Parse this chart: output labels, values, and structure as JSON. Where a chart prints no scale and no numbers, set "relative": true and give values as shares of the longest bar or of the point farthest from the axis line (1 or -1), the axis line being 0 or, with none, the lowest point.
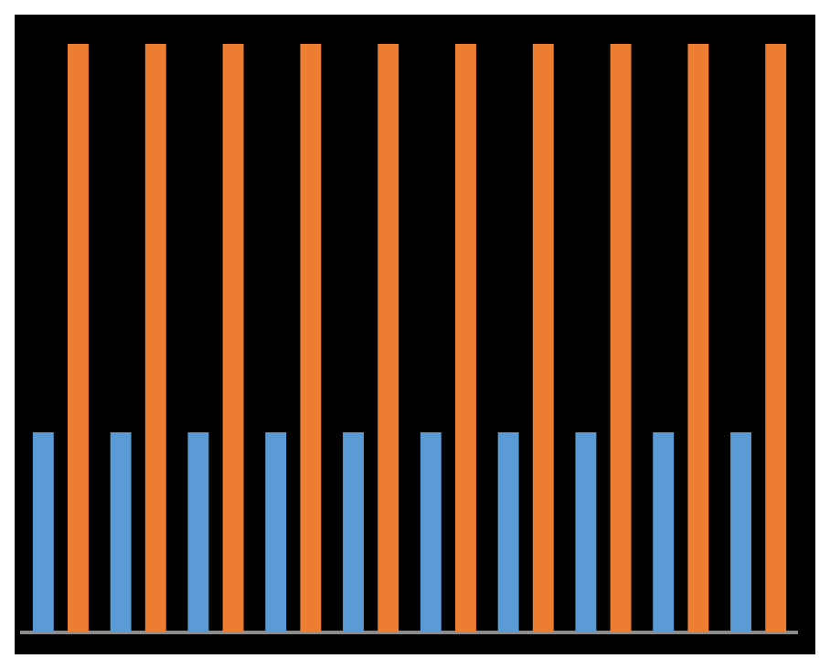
{
  "chart_data": {
    "type": "bar",
    "relative": true,
    "categories": [
      null,
      null,
      null,
      null,
      null,
      null,
      null,
      null,
      null,
      null
    ],
    "series": [
      {
        "color": "#5b9bd5",
        "values": [
          0.34,
          0.34,
          0.34,
          0.34,
          0.34,
          0.34,
          0.34,
          0.34,
          0.34,
          0.34
        ]
      },
      {
        "color": "#ed7d31",
        "values": [
          1,
          1,
          1,
          1,
          1,
          1,
          1,
          1,
          1,
          1
        ]
      }
    ]
  }
}
